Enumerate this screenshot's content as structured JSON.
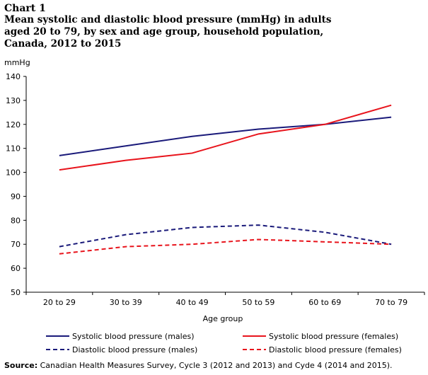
{
  "chart_label": "Chart 1",
  "chart_data": {
    "type": "line",
    "title": "Mean systolic and diastolic blood pressure (mmHg) in adults aged 20 to 79, by sex and age group, household population, Canada, 2012 to 2015",
    "xlabel": "Age group",
    "ylabel": "mmHg",
    "ylim": [
      50,
      140
    ],
    "yticks": [
      50,
      60,
      70,
      80,
      90,
      100,
      110,
      120,
      130,
      140
    ],
    "categories": [
      "20 to 29",
      "30 to 39",
      "40 to 49",
      "50 to 59",
      "60 to 69",
      "70 to 79"
    ],
    "series": [
      {
        "name": "Systolic blood pressure (males)",
        "color": "#1a1a7a",
        "dash": "solid",
        "values": [
          107,
          111,
          115,
          118,
          120,
          123
        ]
      },
      {
        "name": "Systolic blood pressure (females)",
        "color": "#e8141c",
        "dash": "solid",
        "values": [
          101,
          105,
          108,
          116,
          120,
          128
        ]
      },
      {
        "name": "Diastolic blood pressure (males)",
        "color": "#1a1a7a",
        "dash": "dashed",
        "values": [
          69,
          74,
          77,
          78,
          75,
          70
        ]
      },
      {
        "name": "Diastolic blood pressure (females)",
        "color": "#e8141c",
        "dash": "dashed",
        "values": [
          66,
          69,
          70,
          72,
          71,
          70
        ]
      }
    ],
    "legend_position": "bottom",
    "grid": false
  },
  "source": {
    "label": "Source:",
    "text": "Canadian Health Measures Survey, Cycle 3 (2012 and 2013) and Cyde 4 (2014 and 2015)."
  }
}
